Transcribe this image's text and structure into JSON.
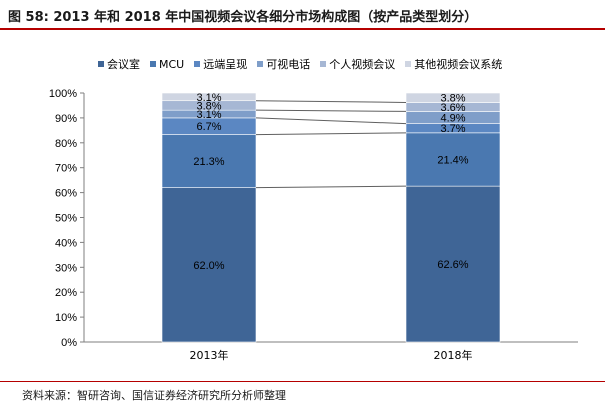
{
  "figure": {
    "title": "图 58: 2013 年和 2018 年中国视频会议各细分市场构成图（按产品类型划分）",
    "source": "资料来源：智研咨询、国信证券经济研究所分析师整理"
  },
  "colors": {
    "会议室": "#3f6596",
    "MCU": "#4a78b0",
    "远端呈现": "#5b87c2",
    "可视电话": "#7f9ec9",
    "个人视频会议": "#a6b7d4",
    "其他视频会议系统": "#cfd5e2"
  },
  "chart_data": {
    "type": "bar",
    "stacked": "percent",
    "categories": [
      "2013年",
      "2018年"
    ],
    "series": [
      {
        "name": "会议室",
        "values": [
          62.0,
          62.6
        ],
        "labels": [
          "62.0%",
          "62.6%"
        ]
      },
      {
        "name": "MCU",
        "values": [
          21.3,
          21.4
        ],
        "labels": [
          "21.3%",
          "21.4%"
        ]
      },
      {
        "name": "远端呈现",
        "values": [
          6.7,
          3.7
        ],
        "labels": [
          "6.7%",
          "3.7%"
        ]
      },
      {
        "name": "可视电话",
        "values": [
          3.1,
          4.9
        ],
        "labels": [
          "3.1%",
          "4.9%"
        ]
      },
      {
        "name": "个人视频会议",
        "values": [
          3.8,
          3.6
        ],
        "labels": [
          "3.8%",
          "3.6%"
        ]
      },
      {
        "name": "其他视频会议系统",
        "values": [
          3.1,
          3.8
        ],
        "labels": [
          "3.1%",
          "3.8%"
        ]
      }
    ],
    "ylim": [
      0,
      100
    ],
    "yticks": [
      "0%",
      "10%",
      "20%",
      "30%",
      "40%",
      "50%",
      "60%",
      "70%",
      "80%",
      "90%",
      "100%"
    ],
    "legend": "top",
    "series_lines": true
  }
}
